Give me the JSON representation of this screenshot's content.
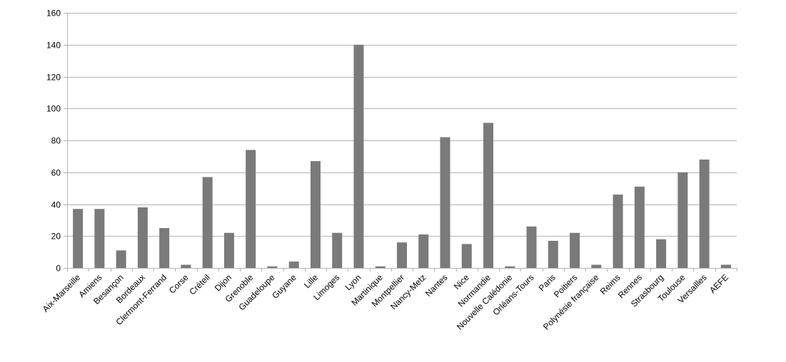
{
  "chart_data": {
    "type": "bar",
    "title": "",
    "xlabel": "",
    "ylabel": "",
    "ylim": [
      0,
      160
    ],
    "yticks": [
      0,
      20,
      40,
      60,
      80,
      100,
      120,
      140,
      160
    ],
    "grid": true,
    "legend": "none",
    "bar_color": "#7a7a7a",
    "grid_color": "#b3b3b3",
    "categories": [
      "Aix-Marseille",
      "Amiens",
      "Besançon",
      "Bordeaux",
      "Clermont-Ferrand",
      "Corse",
      "Créteil",
      "Dijon",
      "Grenoble",
      "Guadeloupe",
      "Guyane",
      "Lille",
      "Limoges",
      "Lyon",
      "Martinique",
      "Montpellier",
      "Nancy-Metz",
      "Nantes",
      "Nice",
      "Normandie",
      "Nouvelle Calédonie",
      "Orléans-Tours",
      "Paris",
      "Poitiers",
      "Polynésie française",
      "Reims",
      "Rennes",
      "Strasbourg",
      "Toulouse",
      "Versailles",
      "AEFE"
    ],
    "values": [
      37,
      37,
      11,
      38,
      25,
      2,
      57,
      22,
      74,
      1,
      4,
      67,
      22,
      140,
      1,
      16,
      21,
      82,
      15,
      91,
      1,
      26,
      17,
      22,
      2,
      46,
      51,
      18,
      60,
      68,
      2
    ]
  }
}
